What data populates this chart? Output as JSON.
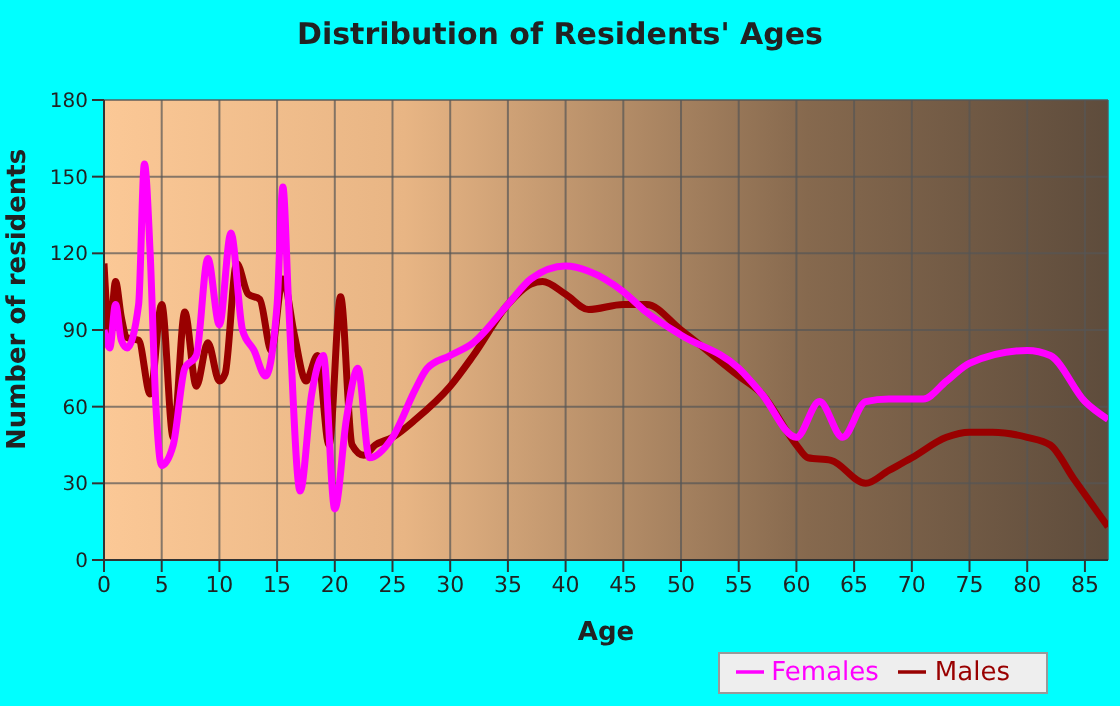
{
  "chart_data": {
    "type": "line",
    "title": "Distribution of Residents' Ages",
    "xlabel": "Age",
    "ylabel": "Number of residents",
    "xlim": [
      0,
      87
    ],
    "xticks": [
      0,
      5,
      10,
      15,
      20,
      25,
      30,
      35,
      40,
      45,
      50,
      55,
      60,
      65,
      70,
      75,
      80,
      85
    ],
    "ylim": [
      0,
      180
    ],
    "yticks": [
      0,
      30,
      60,
      90,
      120,
      150,
      180
    ],
    "grid": true,
    "legend": "bottom right",
    "marker": "none",
    "line_style": "solid",
    "series": [
      {
        "name": "Males",
        "color": "#990000",
        "x": [
          0,
          0.5,
          1,
          1.5,
          2,
          3,
          4,
          5,
          6,
          7,
          8,
          9,
          10,
          10.5,
          11.5,
          12.5,
          13.5,
          14.5,
          15.5,
          16.5,
          17.5,
          18.5,
          19.5,
          20.5,
          21.5,
          22.5,
          23.5,
          25,
          27,
          30,
          32,
          35,
          37,
          38,
          40,
          42,
          45,
          47,
          50,
          55,
          57,
          60,
          61,
          63,
          66,
          68,
          70,
          73,
          75,
          77,
          80,
          82,
          84,
          87
        ],
        "values": [
          116,
          88,
          109,
          95,
          87,
          86,
          65,
          100,
          48,
          97,
          68,
          85,
          70,
          73,
          116,
          104,
          102,
          82,
          110,
          88,
          70,
          80,
          45,
          103,
          45,
          41,
          45,
          48,
          55,
          68,
          80,
          100,
          108,
          109,
          104,
          98,
          100,
          100,
          90,
          72,
          65,
          45,
          40,
          39,
          30,
          35,
          40,
          48,
          50,
          50,
          48,
          45,
          32,
          13
        ]
      },
      {
        "name": "Females",
        "color": "#ff00ff",
        "x": [
          0,
          0.5,
          1,
          1.5,
          2,
          3,
          3.5,
          4,
          4.5,
          5,
          6,
          7,
          8,
          9,
          10,
          11,
          12,
          13,
          14,
          15,
          15.5,
          16,
          17,
          18,
          19,
          20,
          21,
          22,
          23,
          25,
          27,
          28,
          30,
          32,
          35,
          37,
          40,
          42,
          45,
          47,
          50,
          55,
          57,
          60,
          62,
          64,
          66,
          68,
          71,
          73,
          75,
          80,
          82,
          85,
          87
        ],
        "values": [
          90,
          83,
          100,
          86,
          83,
          100,
          155,
          120,
          60,
          37,
          45,
          75,
          80,
          118,
          92,
          128,
          90,
          82,
          72,
          100,
          146,
          100,
          27,
          65,
          80,
          20,
          55,
          75,
          40,
          48,
          67,
          75,
          80,
          85,
          100,
          110,
          115,
          113,
          105,
          97,
          88,
          75,
          65,
          48,
          62,
          48,
          62,
          63,
          63,
          70,
          77,
          82,
          80,
          62,
          55
        ]
      }
    ]
  }
}
